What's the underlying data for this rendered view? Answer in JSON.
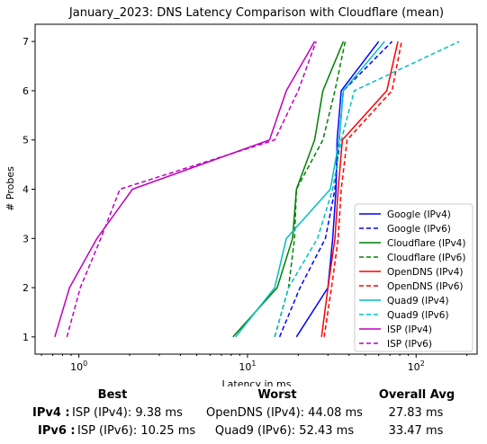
{
  "chart_data": {
    "type": "line",
    "title": "January_2023: DNS Latency Comparison with Cloudflare (mean)",
    "xlabel": "Latency in ms",
    "ylabel": "# Probes",
    "xscale": "log",
    "xlim": [
      0.55,
      230
    ],
    "ylim": [
      0.65,
      7.35
    ],
    "xticks": [
      {
        "value": 1,
        "label": "10^0"
      },
      {
        "value": 10,
        "label": "10^1"
      },
      {
        "value": 100,
        "label": "10^2"
      }
    ],
    "yticks": [
      1,
      2,
      3,
      4,
      5,
      6,
      7
    ],
    "grid": false,
    "legend_position": "lower-right",
    "series": [
      {
        "name": "Google (IPv4)",
        "color": "#0000ff",
        "dash": "solid",
        "x": [
          19.5,
          30,
          32,
          33.5,
          34,
          36,
          60
        ],
        "y": [
          1,
          2,
          3,
          4,
          5,
          6,
          7
        ]
      },
      {
        "name": "Google (IPv6)",
        "color": "#0000ff",
        "dash": "dashed",
        "x": [
          15.5,
          20.5,
          29,
          33,
          35,
          37,
          72
        ],
        "y": [
          1,
          2,
          3,
          4,
          5,
          6,
          7
        ]
      },
      {
        "name": "Cloudflare (IPv4)",
        "color": "#008000",
        "dash": "solid",
        "x": [
          8.2,
          15,
          18.5,
          19.5,
          25,
          28,
          37
        ],
        "y": [
          1,
          2,
          3,
          4,
          5,
          6,
          7
        ]
      },
      {
        "name": "Cloudflare (IPv6)",
        "color": "#008000",
        "dash": "dashed",
        "x": [
          14.5,
          17.5,
          19,
          19.5,
          28,
          33,
          38
        ],
        "y": [
          1,
          2,
          3,
          4,
          5,
          6,
          7
        ]
      },
      {
        "name": "OpenDNS (IPv4)",
        "color": "#ff0000",
        "dash": "solid",
        "x": [
          27.5,
          30,
          33,
          34.5,
          36.5,
          67,
          78
        ],
        "y": [
          1,
          2,
          3,
          4,
          5,
          6,
          7
        ]
      },
      {
        "name": "OpenDNS (IPv6)",
        "color": "#ff0000",
        "dash": "dashed",
        "x": [
          28.5,
          31.5,
          34.5,
          36,
          39,
          72,
          82
        ],
        "y": [
          1,
          2,
          3,
          4,
          5,
          6,
          7
        ]
      },
      {
        "name": "Quad9 (IPv4)",
        "color": "#00bfbf",
        "dash": "solid",
        "x": [
          8.5,
          14.5,
          17,
          31,
          35,
          37,
          65
        ],
        "y": [
          1,
          2,
          3,
          4,
          5,
          6,
          7
        ]
      },
      {
        "name": "Quad9 (IPv6)",
        "color": "#00bfbf",
        "dash": "dashed",
        "x": [
          14.5,
          17.5,
          26,
          32,
          36,
          43,
          180
        ],
        "y": [
          1,
          2,
          3,
          4,
          5,
          6,
          7
        ]
      },
      {
        "name": "ISP (IPv4)",
        "color": "#bf00bf",
        "dash": "solid",
        "x": [
          0.72,
          0.88,
          1.28,
          2.08,
          13.5,
          17,
          25
        ],
        "y": [
          1,
          2,
          3,
          4,
          5,
          6,
          7
        ]
      },
      {
        "name": "ISP (IPv6)",
        "color": "#bf00bf",
        "dash": "dashed",
        "x": [
          0.85,
          1.02,
          1.35,
          1.75,
          14.5,
          20,
          25.5
        ],
        "y": [
          1,
          2,
          3,
          4,
          5,
          6,
          7
        ]
      }
    ]
  },
  "summary": {
    "headers": {
      "best": "Best",
      "worst": "Worst",
      "avg": "Overall Avg"
    },
    "rows": [
      {
        "label": "IPv4 :",
        "best": "ISP (IPv4): 9.38 ms",
        "worst": "OpenDNS (IPv4): 44.08 ms",
        "avg": "27.83 ms"
      },
      {
        "label": "IPv6 :",
        "best": "ISP (IPv6): 10.25 ms",
        "worst": "Quad9 (IPv6): 52.43 ms",
        "avg": "33.47 ms"
      }
    ]
  }
}
